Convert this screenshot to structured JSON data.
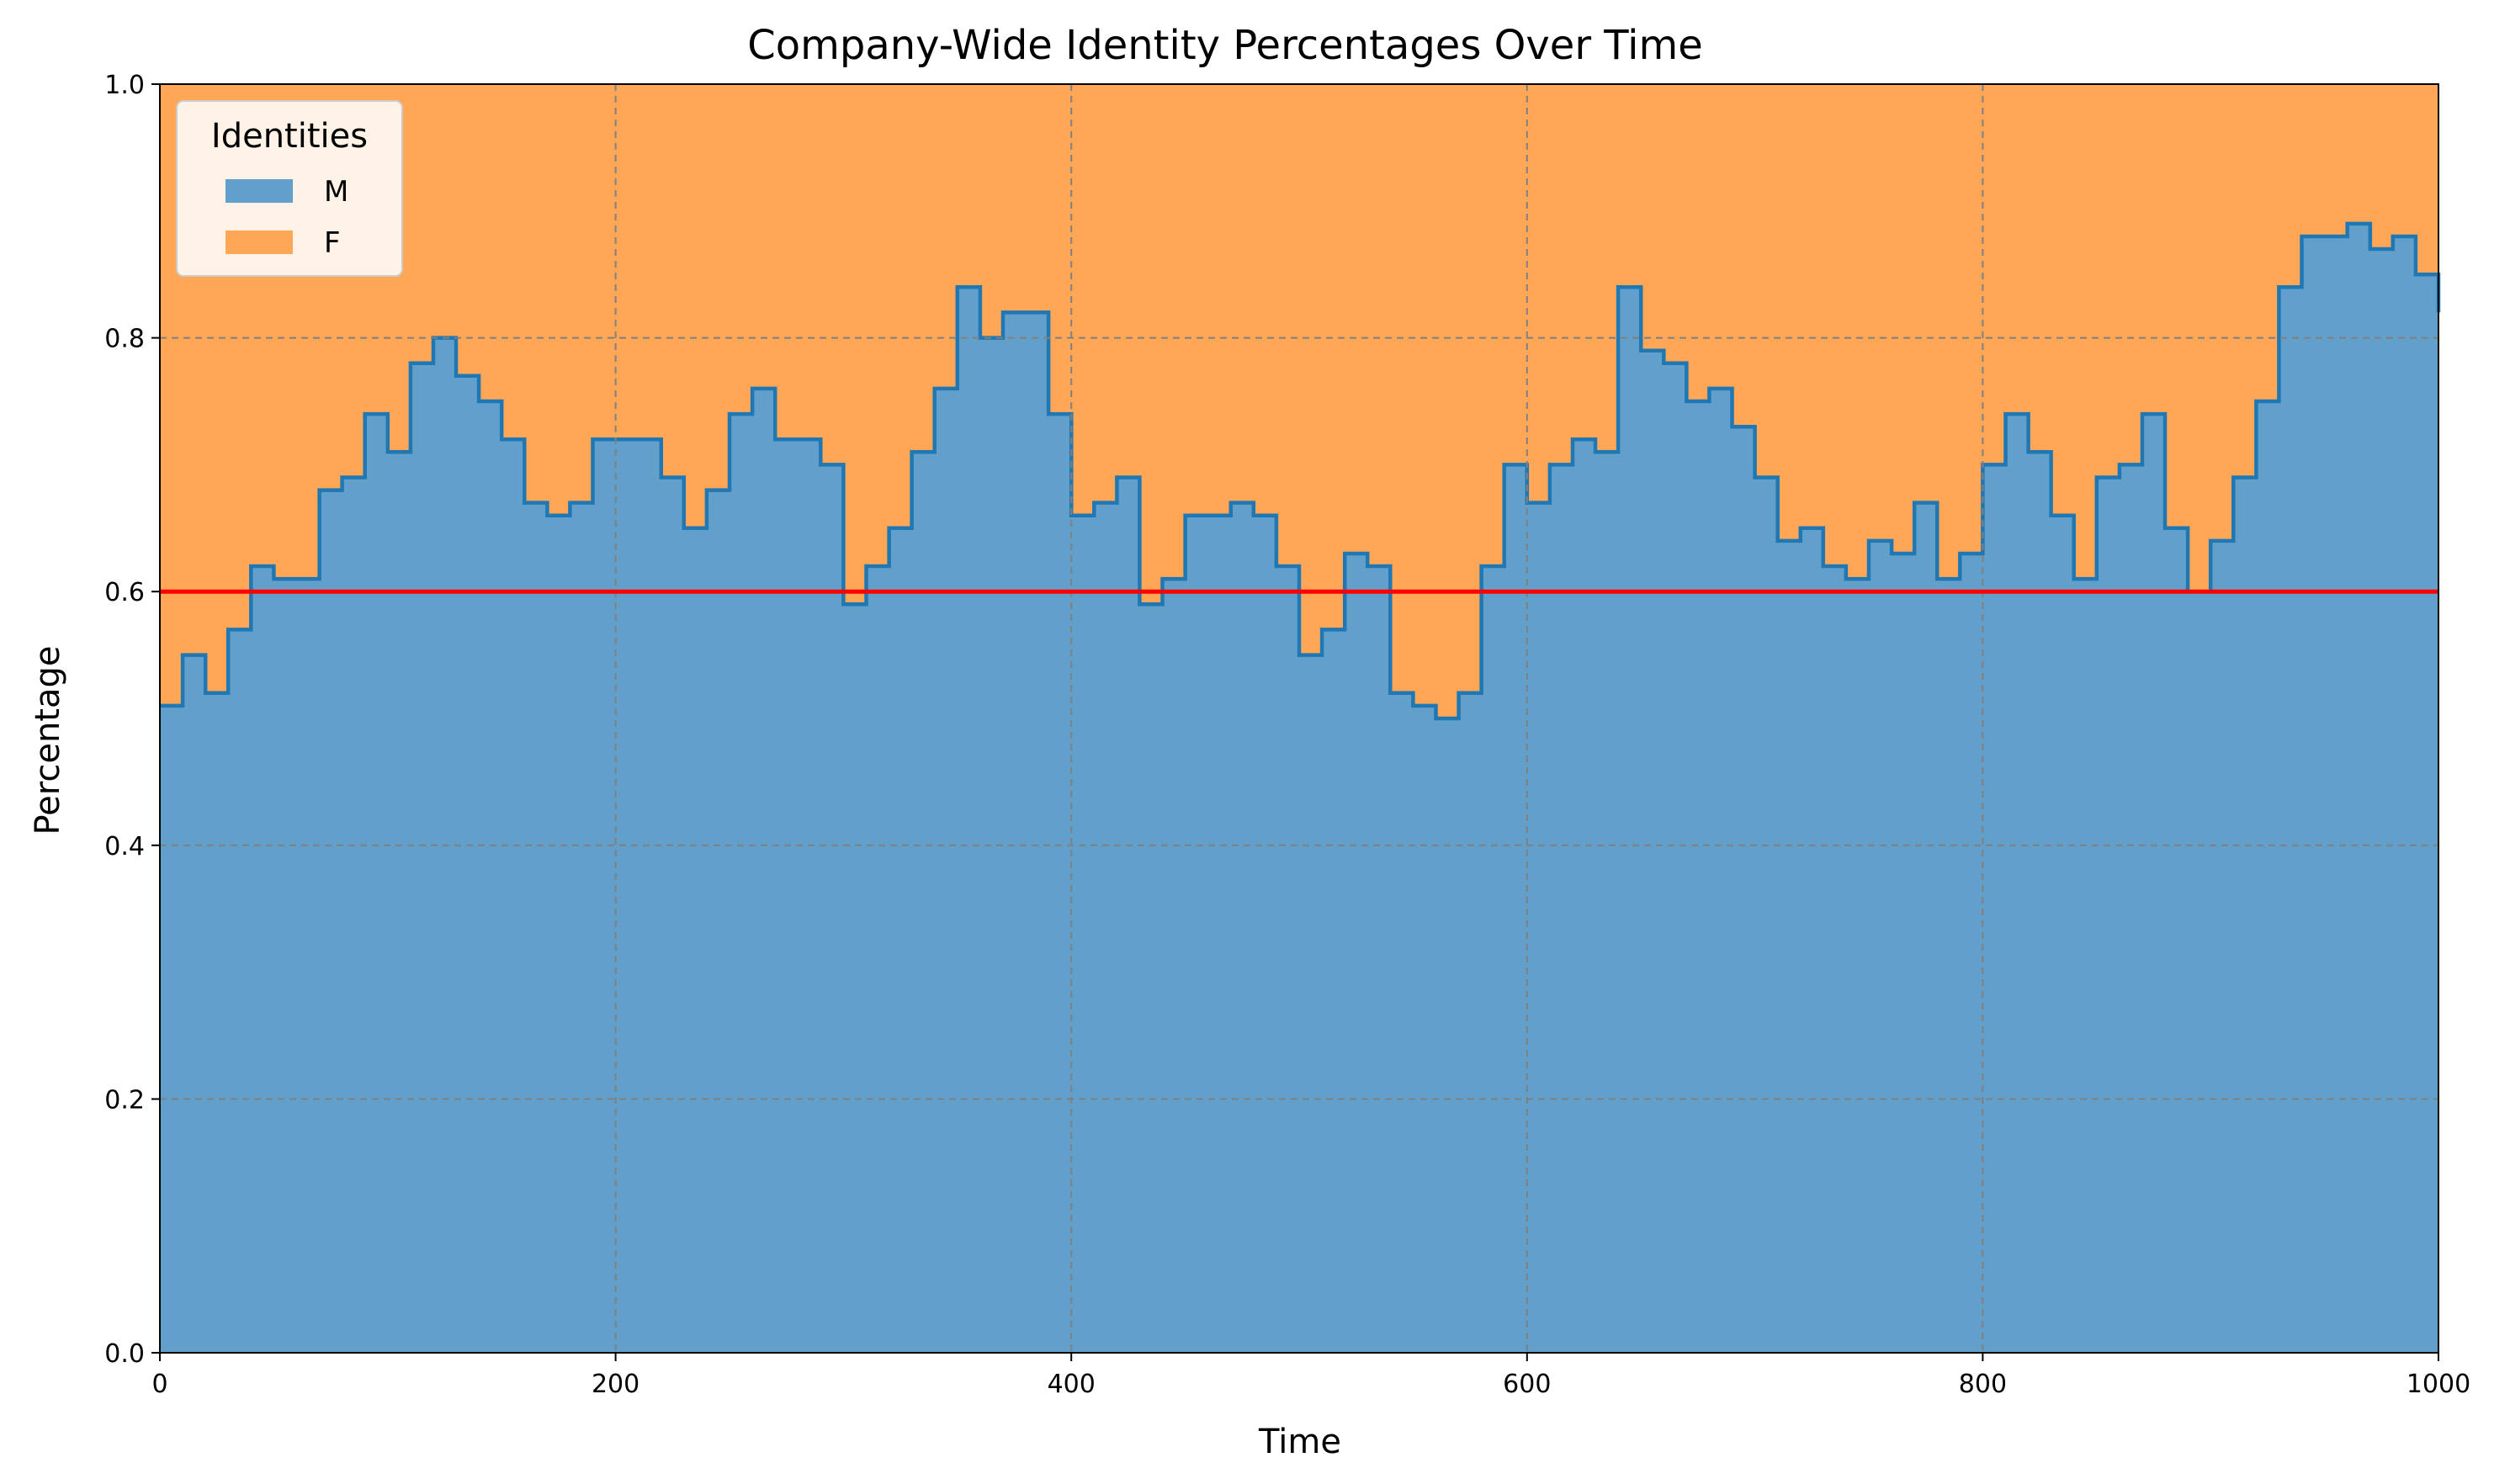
{
  "chart_data": {
    "type": "area",
    "stacked": true,
    "title": "Company-Wide Identity Percentages Over Time",
    "xlabel": "Time",
    "ylabel": "Percentage",
    "xlim": [
      0,
      1000
    ],
    "ylim": [
      0,
      1
    ],
    "xticks": [
      0,
      200,
      400,
      600,
      800,
      1000
    ],
    "yticks": [
      0,
      0.2,
      0.4,
      0.6,
      0.8,
      1.0
    ],
    "xtick_labels": [
      "0",
      "200",
      "400",
      "600",
      "800",
      "1000"
    ],
    "ytick_labels": [
      "0.0",
      "0.2",
      "0.4",
      "0.6",
      "0.8",
      "1.0"
    ],
    "grid": true,
    "legend": {
      "title": "Identities",
      "placement": "top-left"
    },
    "reference_line": {
      "y": 0.6,
      "color": "#ff0000"
    },
    "x": [
      0,
      10,
      20,
      30,
      40,
      50,
      60,
      70,
      80,
      90,
      100,
      110,
      120,
      130,
      140,
      150,
      160,
      170,
      180,
      190,
      200,
      210,
      220,
      230,
      240,
      250,
      260,
      270,
      280,
      290,
      300,
      310,
      320,
      330,
      340,
      350,
      360,
      370,
      380,
      390,
      400,
      410,
      420,
      430,
      440,
      450,
      460,
      470,
      480,
      490,
      500,
      510,
      520,
      530,
      540,
      550,
      560,
      570,
      580,
      590,
      600,
      610,
      620,
      630,
      640,
      650,
      660,
      670,
      680,
      690,
      700,
      710,
      720,
      730,
      740,
      750,
      760,
      770,
      780,
      790,
      800,
      810,
      820,
      830,
      840,
      850,
      860,
      870,
      880,
      890,
      900,
      910,
      920,
      930,
      940,
      950,
      960,
      970,
      980,
      990,
      1000
    ],
    "series": [
      {
        "name": "M",
        "color": "#62a0cb",
        "line_color": "#1f77b4",
        "values": [
          0.51,
          0.55,
          0.52,
          0.57,
          0.62,
          0.61,
          0.61,
          0.68,
          0.69,
          0.74,
          0.71,
          0.78,
          0.8,
          0.77,
          0.75,
          0.72,
          0.67,
          0.66,
          0.67,
          0.72,
          0.72,
          0.72,
          0.69,
          0.65,
          0.68,
          0.74,
          0.76,
          0.72,
          0.72,
          0.7,
          0.59,
          0.62,
          0.65,
          0.71,
          0.76,
          0.84,
          0.8,
          0.82,
          0.82,
          0.74,
          0.66,
          0.67,
          0.69,
          0.59,
          0.61,
          0.66,
          0.66,
          0.67,
          0.66,
          0.62,
          0.55,
          0.57,
          0.63,
          0.62,
          0.52,
          0.51,
          0.5,
          0.52,
          0.62,
          0.7,
          0.67,
          0.7,
          0.72,
          0.71,
          0.84,
          0.79,
          0.78,
          0.75,
          0.76,
          0.73,
          0.69,
          0.64,
          0.65,
          0.62,
          0.61,
          0.64,
          0.63,
          0.67,
          0.61,
          0.63,
          0.7,
          0.74,
          0.71,
          0.66,
          0.61,
          0.69,
          0.7,
          0.74,
          0.65,
          0.6,
          0.64,
          0.69,
          0.75,
          0.84,
          0.88,
          0.88,
          0.89,
          0.87,
          0.88,
          0.85,
          0.82
        ]
      },
      {
        "name": "F",
        "color": "#ffa657",
        "values": [
          0.49,
          0.45,
          0.48,
          0.43,
          0.38,
          0.39,
          0.39,
          0.32,
          0.31,
          0.26,
          0.29,
          0.22,
          0.2,
          0.23,
          0.25,
          0.28,
          0.33,
          0.34,
          0.33,
          0.28,
          0.28,
          0.28,
          0.31,
          0.35,
          0.32,
          0.26,
          0.24,
          0.28,
          0.28,
          0.3,
          0.41,
          0.38,
          0.35,
          0.29,
          0.24,
          0.16,
          0.2,
          0.18,
          0.18,
          0.26,
          0.34,
          0.33,
          0.31,
          0.41,
          0.39,
          0.34,
          0.34,
          0.33,
          0.34,
          0.38,
          0.45,
          0.43,
          0.37,
          0.38,
          0.48,
          0.49,
          0.5,
          0.48,
          0.38,
          0.3,
          0.33,
          0.3,
          0.28,
          0.29,
          0.16,
          0.21,
          0.22,
          0.25,
          0.24,
          0.27,
          0.31,
          0.36,
          0.35,
          0.38,
          0.39,
          0.36,
          0.37,
          0.33,
          0.39,
          0.37,
          0.3,
          0.26,
          0.29,
          0.34,
          0.39,
          0.31,
          0.3,
          0.26,
          0.35,
          0.4,
          0.36,
          0.31,
          0.25,
          0.16,
          0.12,
          0.12,
          0.11,
          0.13,
          0.12,
          0.15,
          0.18
        ]
      }
    ]
  }
}
